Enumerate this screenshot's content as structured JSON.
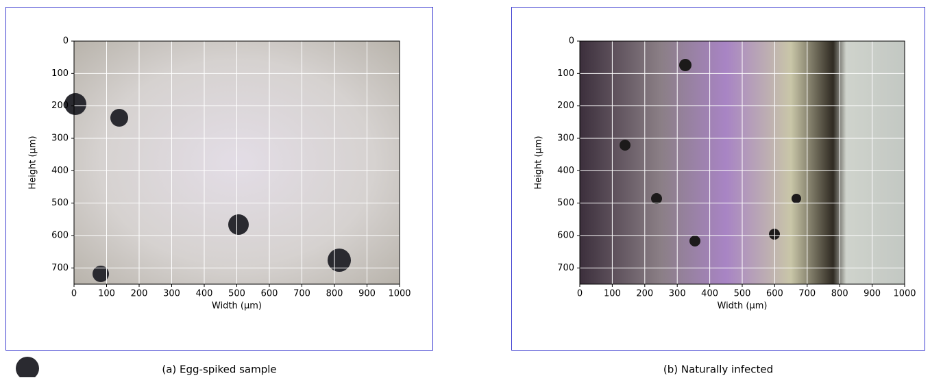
{
  "chart_data": [
    {
      "type": "image",
      "caption": "(a) Egg-spiked sample",
      "xlabel": "Width (μm)",
      "ylabel": "Height (μm)",
      "xlim": [
        0,
        1000
      ],
      "ylim": [
        750,
        0
      ],
      "xticks": [
        0,
        100,
        200,
        300,
        400,
        500,
        600,
        700,
        800,
        900,
        1000
      ],
      "yticks": [
        0,
        100,
        200,
        300,
        400,
        500,
        600,
        700
      ],
      "grid": true,
      "grid_color": "#ffffff"
    },
    {
      "type": "image",
      "caption": "(b) Naturally infected",
      "xlabel": "Width (μm)",
      "ylabel": "Height (μm)",
      "xlim": [
        0,
        1000
      ],
      "ylim": [
        750,
        0
      ],
      "xticks": [
        0,
        100,
        200,
        300,
        400,
        500,
        600,
        700,
        800,
        900,
        1000
      ],
      "yticks": [
        0,
        100,
        200,
        300,
        400,
        500,
        600,
        700
      ],
      "grid": true,
      "grid_color": "#ffffff"
    }
  ]
}
